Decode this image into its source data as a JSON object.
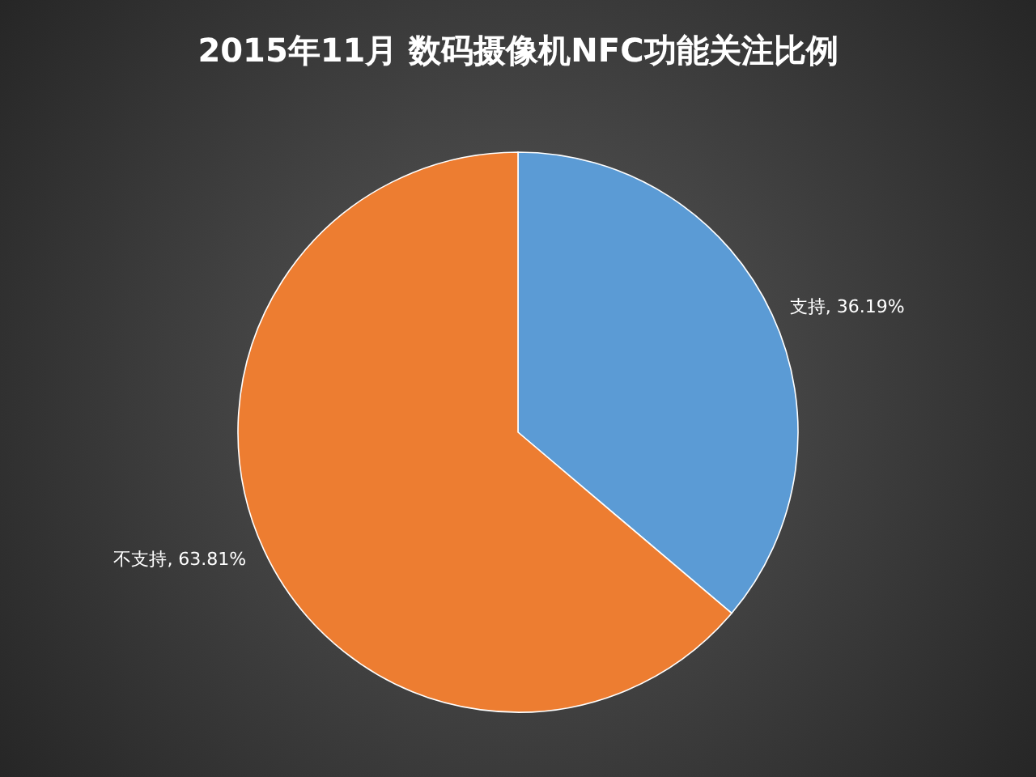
{
  "chart_data": {
    "type": "pie",
    "title": "2015年11月  数码摄像机NFC功能关注比例",
    "categories": [
      "支持",
      "不支持"
    ],
    "values": [
      36.19,
      63.81
    ],
    "value_labels": [
      ", 36.19%",
      ", 63.81%"
    ],
    "colors": [
      "#5b9bd5",
      "#ed7d31"
    ]
  }
}
